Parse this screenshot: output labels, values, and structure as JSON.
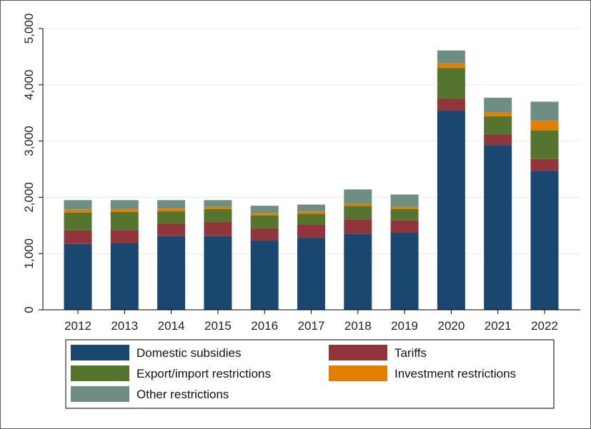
{
  "chart_data": {
    "type": "bar",
    "stacked": true,
    "title": "",
    "xlabel": "",
    "ylabel": "",
    "ylim": [
      0,
      5000
    ],
    "yticks": [
      0,
      1000,
      2000,
      3000,
      4000,
      5000
    ],
    "ytick_labels": [
      "0",
      "1,000",
      "2,000",
      "3,000",
      "4,000",
      "5,000"
    ],
    "grid": true,
    "legend_position": "bottom",
    "categories": [
      "2012",
      "2013",
      "2014",
      "2015",
      "2016",
      "2017",
      "2018",
      "2019",
      "2020",
      "2021",
      "2022"
    ],
    "series": [
      {
        "name": "Domestic subsidies",
        "color": "#1a476f",
        "values": [
          1170,
          1180,
          1310,
          1310,
          1230,
          1280,
          1350,
          1370,
          3540,
          2930,
          2470
        ]
      },
      {
        "name": "Tariffs",
        "color": "#90353b",
        "values": [
          240,
          240,
          220,
          250,
          210,
          230,
          260,
          220,
          210,
          190,
          210
        ]
      },
      {
        "name": "Export/import restrictions",
        "color": "#55752f",
        "values": [
          320,
          320,
          220,
          230,
          240,
          200,
          240,
          200,
          550,
          320,
          510
        ]
      },
      {
        "name": "Investment restrictions",
        "color": "#e37e00",
        "values": [
          50,
          50,
          50,
          40,
          40,
          40,
          40,
          40,
          80,
          70,
          170
        ]
      },
      {
        "name": "Other restrictions",
        "color": "#6e8e84",
        "values": [
          170,
          160,
          150,
          120,
          130,
          120,
          250,
          220,
          230,
          260,
          340
        ]
      }
    ]
  }
}
